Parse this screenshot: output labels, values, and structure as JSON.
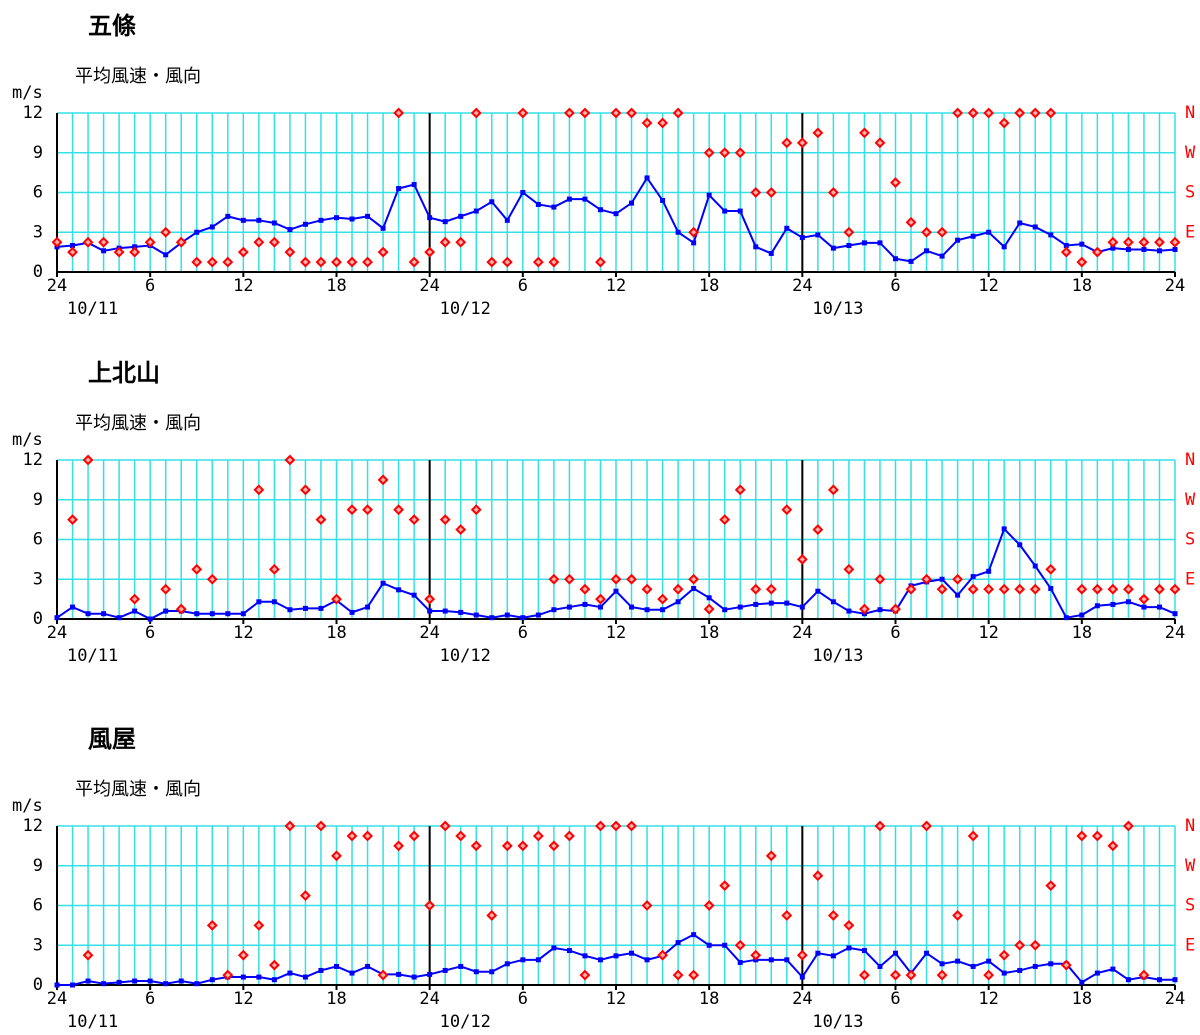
{
  "chart_data": [
    {
      "type": "line",
      "title": "五條",
      "subtitle": "平均風速・風向",
      "y_label": "m/s",
      "x": [
        0,
        1,
        2,
        3,
        4,
        5,
        6,
        7,
        8,
        9,
        10,
        11,
        12,
        13,
        14,
        15,
        16,
        17,
        18,
        19,
        20,
        21,
        22,
        23,
        24,
        25,
        26,
        27,
        28,
        29,
        30,
        31,
        32,
        33,
        34,
        35,
        36,
        37,
        38,
        39,
        40,
        41,
        42,
        43,
        44,
        45,
        46,
        47,
        48,
        49,
        50,
        51,
        52,
        53,
        54,
        55,
        56,
        57,
        58,
        59,
        60,
        61,
        62,
        63,
        64,
        65,
        66,
        67,
        68,
        69,
        70,
        71,
        72
      ],
      "xlim": [
        0,
        72
      ],
      "xticks": [
        {
          "value": 0,
          "label": "24"
        },
        {
          "value": 6,
          "label": "6"
        },
        {
          "value": 12,
          "label": "12"
        },
        {
          "value": 18,
          "label": "18"
        },
        {
          "value": 24,
          "label": "24"
        },
        {
          "value": 30,
          "label": "6"
        },
        {
          "value": 36,
          "label": "12"
        },
        {
          "value": 42,
          "label": "18"
        },
        {
          "value": 48,
          "label": "24"
        },
        {
          "value": 54,
          "label": "6"
        },
        {
          "value": 60,
          "label": "12"
        },
        {
          "value": 66,
          "label": "18"
        },
        {
          "value": 72,
          "label": "24"
        }
      ],
      "date_labels": [
        {
          "value": 0,
          "label": "10/11"
        },
        {
          "value": 24,
          "label": "10/12"
        },
        {
          "value": 48,
          "label": "10/13"
        }
      ],
      "day_lines": [
        24,
        48
      ],
      "ylim": [
        0,
        12
      ],
      "yticks": [
        0,
        3,
        6,
        9,
        12
      ],
      "y2lim": [
        0,
        12
      ],
      "y2ticks": [
        {
          "value": 3,
          "label": "E"
        },
        {
          "value": 6,
          "label": "S"
        },
        {
          "value": 9,
          "label": "W"
        },
        {
          "value": 12,
          "label": "N"
        }
      ],
      "grid": true,
      "series": [
        {
          "color": "#0000ff",
          "values": [
            1.9,
            2.0,
            2.2,
            1.6,
            1.8,
            1.9,
            2.0,
            1.3,
            2.2,
            3.0,
            3.4,
            4.2,
            3.9,
            3.9,
            3.7,
            3.2,
            3.6,
            3.9,
            4.1,
            4.0,
            4.2,
            3.3,
            6.3,
            6.6,
            4.1,
            3.8,
            4.2,
            4.6,
            5.3,
            3.9,
            6.0,
            5.1,
            4.9,
            5.5,
            5.5,
            4.7,
            4.4,
            5.2,
            7.1,
            5.4,
            3.0,
            2.2,
            5.8,
            4.6,
            4.6,
            1.9,
            1.4,
            3.3,
            2.6,
            2.8,
            1.8,
            2.0,
            2.2,
            2.2,
            1.0,
            0.8,
            1.6,
            1.2,
            2.4,
            2.7,
            3.0,
            1.9,
            3.7,
            3.4,
            2.8,
            2.0,
            2.1,
            1.5,
            1.8,
            1.7,
            1.7,
            1.6,
            1.7
          ]
        },
        {
          "color": "#ff0000",
          "axis": "y2",
          "marker": "diamond",
          "values": [
            2.25,
            1.5,
            2.25,
            2.25,
            1.5,
            1.5,
            2.25,
            3,
            2.25,
            0.75,
            0.75,
            0.75,
            1.5,
            2.25,
            2.25,
            1.5,
            0.75,
            0.75,
            0.75,
            0.75,
            0.75,
            1.5,
            12,
            0.75,
            1.5,
            2.25,
            2.25,
            12,
            0.75,
            0.75,
            12,
            0.75,
            0.75,
            12,
            12,
            0.75,
            12,
            12,
            11.25,
            11.25,
            12,
            3,
            9,
            9,
            9,
            6,
            6,
            9.75,
            9.75,
            10.5,
            6,
            3,
            10.5,
            9.75,
            6.75,
            3.75,
            3,
            3,
            12,
            12,
            12,
            11.25,
            12,
            12,
            12,
            1.5,
            0.75,
            1.5,
            2.25,
            2.25,
            2.25,
            2.25,
            2.25
          ]
        }
      ]
    },
    {
      "type": "line",
      "title": "上北山",
      "subtitle": "平均風速・風向",
      "y_label": "m/s",
      "x": [
        0,
        1,
        2,
        3,
        4,
        5,
        6,
        7,
        8,
        9,
        10,
        11,
        12,
        13,
        14,
        15,
        16,
        17,
        18,
        19,
        20,
        21,
        22,
        23,
        24,
        25,
        26,
        27,
        28,
        29,
        30,
        31,
        32,
        33,
        34,
        35,
        36,
        37,
        38,
        39,
        40,
        41,
        42,
        43,
        44,
        45,
        46,
        47,
        48,
        49,
        50,
        51,
        52,
        53,
        54,
        55,
        56,
        57,
        58,
        59,
        60,
        61,
        62,
        63,
        64,
        65,
        66,
        67,
        68,
        69,
        70,
        71,
        72
      ],
      "xlim": [
        0,
        72
      ],
      "xticks": [
        {
          "value": 0,
          "label": "24"
        },
        {
          "value": 6,
          "label": "6"
        },
        {
          "value": 12,
          "label": "12"
        },
        {
          "value": 18,
          "label": "18"
        },
        {
          "value": 24,
          "label": "24"
        },
        {
          "value": 30,
          "label": "6"
        },
        {
          "value": 36,
          "label": "12"
        },
        {
          "value": 42,
          "label": "18"
        },
        {
          "value": 48,
          "label": "24"
        },
        {
          "value": 54,
          "label": "6"
        },
        {
          "value": 60,
          "label": "12"
        },
        {
          "value": 66,
          "label": "18"
        },
        {
          "value": 72,
          "label": "24"
        }
      ],
      "date_labels": [
        {
          "value": 0,
          "label": "10/11"
        },
        {
          "value": 24,
          "label": "10/12"
        },
        {
          "value": 48,
          "label": "10/13"
        }
      ],
      "day_lines": [
        24,
        48
      ],
      "ylim": [
        0,
        12
      ],
      "yticks": [
        0,
        3,
        6,
        9,
        12
      ],
      "y2lim": [
        0,
        12
      ],
      "y2ticks": [
        {
          "value": 3,
          "label": "E"
        },
        {
          "value": 6,
          "label": "S"
        },
        {
          "value": 9,
          "label": "W"
        },
        {
          "value": 12,
          "label": "N"
        }
      ],
      "grid": true,
      "series": [
        {
          "color": "#0000ff",
          "values": [
            0.1,
            0.9,
            0.4,
            0.4,
            0.1,
            0.6,
            0,
            0.6,
            0.6,
            0.4,
            0.4,
            0.4,
            0.4,
            1.3,
            1.3,
            0.7,
            0.8,
            0.8,
            1.4,
            0.5,
            0.9,
            2.7,
            2.2,
            1.8,
            0.6,
            0.6,
            0.5,
            0.3,
            0.1,
            0.3,
            0.1,
            0.3,
            0.7,
            0.9,
            1.1,
            0.9,
            2.1,
            0.9,
            0.7,
            0.7,
            1.3,
            2.3,
            1.6,
            0.7,
            0.9,
            1.1,
            1.2,
            1.2,
            0.9,
            2.1,
            1.3,
            0.6,
            0.4,
            0.7,
            0.6,
            2.5,
            2.8,
            3.0,
            1.8,
            3.2,
            3.6,
            6.8,
            5.6,
            4.0,
            2.3,
            0.1,
            0.3,
            1.0,
            1.1,
            1.3,
            0.9,
            0.9,
            0.4
          ]
        },
        {
          "color": "#ff0000",
          "axis": "y2",
          "marker": "diamond",
          "values": [
            null,
            7.5,
            12,
            null,
            null,
            1.5,
            null,
            2.25,
            0.75,
            3.75,
            3,
            null,
            null,
            9.75,
            3.75,
            12,
            9.75,
            7.5,
            1.5,
            8.25,
            8.25,
            10.5,
            8.25,
            7.5,
            1.5,
            7.5,
            6.75,
            8.25,
            null,
            null,
            null,
            null,
            3,
            3,
            2.25,
            1.5,
            3,
            3,
            2.25,
            1.5,
            2.25,
            3,
            0.75,
            7.5,
            9.75,
            2.25,
            2.25,
            8.25,
            4.5,
            6.75,
            9.75,
            3.75,
            0.75,
            3,
            0.75,
            2.25,
            3,
            2.25,
            3,
            2.25,
            2.25,
            2.25,
            2.25,
            2.25,
            3.75,
            null,
            2.25,
            2.25,
            2.25,
            2.25,
            1.5,
            2.25,
            2.25
          ]
        }
      ]
    },
    {
      "type": "line",
      "title": "風屋",
      "subtitle": "平均風速・風向",
      "y_label": "m/s",
      "x": [
        0,
        1,
        2,
        3,
        4,
        5,
        6,
        7,
        8,
        9,
        10,
        11,
        12,
        13,
        14,
        15,
        16,
        17,
        18,
        19,
        20,
        21,
        22,
        23,
        24,
        25,
        26,
        27,
        28,
        29,
        30,
        31,
        32,
        33,
        34,
        35,
        36,
        37,
        38,
        39,
        40,
        41,
        42,
        43,
        44,
        45,
        46,
        47,
        48,
        49,
        50,
        51,
        52,
        53,
        54,
        55,
        56,
        57,
        58,
        59,
        60,
        61,
        62,
        63,
        64,
        65,
        66,
        67,
        68,
        69,
        70,
        71,
        72
      ],
      "xlim": [
        0,
        72
      ],
      "xticks": [
        {
          "value": 0,
          "label": "24"
        },
        {
          "value": 6,
          "label": "6"
        },
        {
          "value": 12,
          "label": "12"
        },
        {
          "value": 18,
          "label": "18"
        },
        {
          "value": 24,
          "label": "24"
        },
        {
          "value": 30,
          "label": "6"
        },
        {
          "value": 36,
          "label": "12"
        },
        {
          "value": 42,
          "label": "18"
        },
        {
          "value": 48,
          "label": "24"
        },
        {
          "value": 54,
          "label": "6"
        },
        {
          "value": 60,
          "label": "12"
        },
        {
          "value": 66,
          "label": "18"
        },
        {
          "value": 72,
          "label": "24"
        }
      ],
      "date_labels": [
        {
          "value": 0,
          "label": "10/11"
        },
        {
          "value": 24,
          "label": "10/12"
        },
        {
          "value": 48,
          "label": "10/13"
        }
      ],
      "day_lines": [
        24,
        48
      ],
      "ylim": [
        0,
        12
      ],
      "yticks": [
        0,
        3,
        6,
        9,
        12
      ],
      "y2lim": [
        0,
        12
      ],
      "y2ticks": [
        {
          "value": 3,
          "label": "E"
        },
        {
          "value": 6,
          "label": "S"
        },
        {
          "value": 9,
          "label": "W"
        },
        {
          "value": 12,
          "label": "N"
        }
      ],
      "grid": true,
      "series": [
        {
          "color": "#0000ff",
          "values": [
            0,
            0,
            0.3,
            0.1,
            0.2,
            0.3,
            0.3,
            0.1,
            0.3,
            0.1,
            0.4,
            0.6,
            0.6,
            0.6,
            0.4,
            0.9,
            0.6,
            1.1,
            1.4,
            0.9,
            1.4,
            0.8,
            0.8,
            0.6,
            0.8,
            1.1,
            1.4,
            1.0,
            1.0,
            1.6,
            1.9,
            1.9,
            2.8,
            2.6,
            2.2,
            1.9,
            2.2,
            2.4,
            1.9,
            2.2,
            3.2,
            3.8,
            3.0,
            3.0,
            1.7,
            1.9,
            1.9,
            1.9,
            0.6,
            2.4,
            2.2,
            2.8,
            2.6,
            1.4,
            2.4,
            0.9,
            2.4,
            1.6,
            1.8,
            1.4,
            1.8,
            0.9,
            1.1,
            1.4,
            1.6,
            1.6,
            0.2,
            0.9,
            1.2,
            0.4,
            0.6,
            0.4,
            0.4
          ]
        },
        {
          "color": "#ff0000",
          "axis": "y2",
          "marker": "diamond",
          "values": [
            null,
            null,
            2.25,
            null,
            null,
            null,
            null,
            null,
            null,
            null,
            4.5,
            0.75,
            2.25,
            4.5,
            1.5,
            12,
            6.75,
            12,
            9.75,
            11.25,
            11.25,
            0.75,
            10.5,
            11.25,
            6,
            12,
            11.25,
            10.5,
            5.25,
            10.5,
            10.5,
            11.25,
            10.5,
            11.25,
            0.75,
            12,
            12,
            12,
            6,
            2.25,
            0.75,
            0.75,
            6,
            7.5,
            3,
            2.25,
            9.75,
            5.25,
            2.25,
            8.25,
            5.25,
            4.5,
            0.75,
            12,
            0.75,
            0.75,
            12,
            0.75,
            5.25,
            11.25,
            0.75,
            2.25,
            3,
            3,
            7.5,
            1.5,
            11.25,
            11.25,
            10.5,
            12,
            0.75,
            null,
            null
          ]
        }
      ]
    }
  ]
}
